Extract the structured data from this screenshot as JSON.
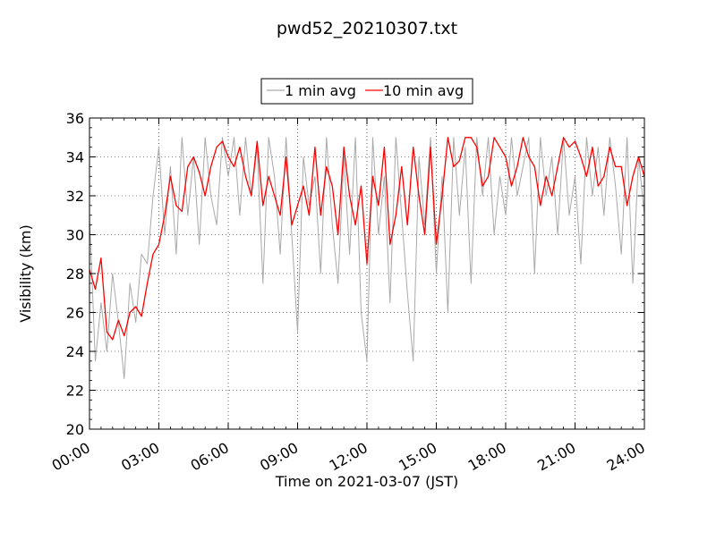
{
  "chart_data": {
    "type": "line",
    "title": "pwd52_20210307.txt",
    "xlabel": "Time on 2021-03-07 (JST)",
    "ylabel": "Visibility (km)",
    "x_unit": "hours",
    "xlim": [
      0,
      24
    ],
    "ylim": [
      20,
      36
    ],
    "x_ticks": [
      "00:00",
      "03:00",
      "06:00",
      "09:00",
      "12:00",
      "15:00",
      "18:00",
      "21:00",
      "24:00"
    ],
    "y_ticks": [
      "20",
      "22",
      "24",
      "26",
      "28",
      "30",
      "32",
      "34",
      "36"
    ],
    "grid": true,
    "legend_position": "top-center",
    "series": [
      {
        "name": "1 min avg",
        "color": "#a9a9a9",
        "x": [
          0,
          0.25,
          0.5,
          0.75,
          1.0,
          1.25,
          1.5,
          1.75,
          2.0,
          2.25,
          2.5,
          2.75,
          3.0,
          3.25,
          3.5,
          3.75,
          4.0,
          4.25,
          4.5,
          4.75,
          5.0,
          5.25,
          5.5,
          5.75,
          6.0,
          6.25,
          6.5,
          6.75,
          7.0,
          7.25,
          7.5,
          7.75,
          8.0,
          8.25,
          8.5,
          8.75,
          9.0,
          9.25,
          9.5,
          9.75,
          10.0,
          10.25,
          10.5,
          10.75,
          11.0,
          11.25,
          11.5,
          11.75,
          12.0,
          12.25,
          12.5,
          12.75,
          13.0,
          13.25,
          13.5,
          13.75,
          14.0,
          14.25,
          14.5,
          14.75,
          15.0,
          15.25,
          15.5,
          15.75,
          16.0,
          16.25,
          16.5,
          16.75,
          17.0,
          17.25,
          17.5,
          17.75,
          18.0,
          18.25,
          18.5,
          18.75,
          19.0,
          19.25,
          19.5,
          19.75,
          20.0,
          20.25,
          20.5,
          20.75,
          21.0,
          21.25,
          21.5,
          21.75,
          22.0,
          22.25,
          22.5,
          22.75,
          23.0,
          23.25,
          23.5,
          23.75,
          24.0
        ],
        "y": [
          31.0,
          23.5,
          26.5,
          24.0,
          28.0,
          25.5,
          22.6,
          27.5,
          25.5,
          29.0,
          28.5,
          32.0,
          34.5,
          30.0,
          33.5,
          29.0,
          35.0,
          31.0,
          34.0,
          29.5,
          35.0,
          32.0,
          30.5,
          35.0,
          33.0,
          35.0,
          31.0,
          35.0,
          32.0,
          34.5,
          27.5,
          35.0,
          33.0,
          29.0,
          35.0,
          30.0,
          25.0,
          34.0,
          31.5,
          33.0,
          28.0,
          35.0,
          30.5,
          27.5,
          34.0,
          29.0,
          35.0,
          26.0,
          23.5,
          35.0,
          30.0,
          33.0,
          26.5,
          35.0,
          31.0,
          27.0,
          23.5,
          34.0,
          30.5,
          35.0,
          28.0,
          33.0,
          26.0,
          35.0,
          31.0,
          34.5,
          27.5,
          35.0,
          32.0,
          35.0,
          30.0,
          33.0,
          31.0,
          35.0,
          32.0,
          33.5,
          35.0,
          28.0,
          35.0,
          32.0,
          34.0,
          30.0,
          35.0,
          31.0,
          33.0,
          28.5,
          35.0,
          32.0,
          34.5,
          31.0,
          35.0,
          32.5,
          29.0,
          35.0,
          27.5,
          34.0,
          31.0
        ]
      },
      {
        "name": "10 min avg",
        "color": "#ff0000",
        "x": [
          0,
          0.25,
          0.5,
          0.75,
          1.0,
          1.25,
          1.5,
          1.75,
          2.0,
          2.25,
          2.5,
          2.75,
          3.0,
          3.25,
          3.5,
          3.75,
          4.0,
          4.25,
          4.5,
          4.75,
          5.0,
          5.25,
          5.5,
          5.75,
          6.0,
          6.25,
          6.5,
          6.75,
          7.0,
          7.25,
          7.5,
          7.75,
          8.0,
          8.25,
          8.5,
          8.75,
          9.0,
          9.25,
          9.5,
          9.75,
          10.0,
          10.25,
          10.5,
          10.75,
          11.0,
          11.25,
          11.5,
          11.75,
          12.0,
          12.25,
          12.5,
          12.75,
          13.0,
          13.25,
          13.5,
          13.75,
          14.0,
          14.25,
          14.5,
          14.75,
          15.0,
          15.25,
          15.5,
          15.75,
          16.0,
          16.25,
          16.5,
          16.75,
          17.0,
          17.25,
          17.5,
          17.75,
          18.0,
          18.25,
          18.5,
          18.75,
          19.0,
          19.25,
          19.5,
          19.75,
          20.0,
          20.25,
          20.5,
          20.75,
          21.0,
          21.25,
          21.5,
          21.75,
          22.0,
          22.25,
          22.5,
          22.75,
          23.0,
          23.25,
          23.5,
          23.75,
          24.0
        ],
        "y": [
          28.2,
          27.2,
          28.8,
          25.0,
          24.6,
          25.6,
          24.8,
          26.0,
          26.3,
          25.8,
          27.5,
          29.0,
          29.5,
          31.0,
          33.0,
          31.5,
          31.2,
          33.5,
          34.0,
          33.2,
          32.0,
          33.5,
          34.5,
          34.8,
          34.0,
          33.5,
          34.5,
          33.0,
          32.0,
          34.8,
          31.5,
          33.0,
          32.0,
          31.0,
          34.0,
          30.5,
          31.5,
          32.5,
          31.0,
          34.5,
          31.0,
          33.5,
          32.5,
          30.0,
          34.5,
          32.0,
          30.5,
          32.5,
          28.5,
          33.0,
          31.5,
          34.5,
          29.5,
          31.0,
          33.5,
          30.5,
          34.5,
          32.0,
          30.0,
          34.5,
          29.5,
          32.0,
          35.0,
          33.5,
          33.8,
          35.0,
          35.0,
          34.5,
          32.5,
          33.0,
          35.0,
          34.5,
          34.0,
          32.5,
          33.5,
          35.0,
          34.0,
          33.5,
          31.5,
          33.0,
          32.0,
          33.5,
          35.0,
          34.5,
          34.8,
          34.0,
          33.0,
          34.5,
          32.5,
          33.0,
          34.5,
          33.5,
          33.5,
          31.5,
          33.0,
          34.0,
          33.0
        ]
      }
    ]
  }
}
